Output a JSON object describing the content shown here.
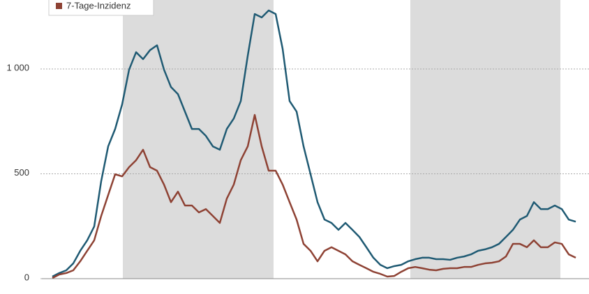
{
  "chart_data": {
    "type": "line",
    "ylim": [
      -73,
      1329
    ],
    "yticks": [
      0,
      500,
      {
        "value": 1000,
        "label": "1 000"
      }
    ],
    "grid": true,
    "series": [
      {
        "color": "#1f5a73",
        "values": [
          10,
          27,
          40,
          73,
          133,
          183,
          249,
          465,
          631,
          714,
          831,
          997,
          1080,
          1047,
          1090,
          1113,
          997,
          914,
          880,
          797,
          714,
          714,
          681,
          631,
          615,
          714,
          764,
          847,
          1063,
          1262,
          1246,
          1279,
          1262,
          1096,
          847,
          797,
          631,
          498,
          365,
          282,
          266,
          233,
          266,
          233,
          199,
          150,
          100,
          66,
          50,
          60,
          66,
          83,
          93,
          100,
          100,
          93,
          93,
          90,
          100,
          106,
          116,
          133,
          140,
          150,
          166,
          199,
          233,
          282,
          299,
          365,
          332,
          332,
          349,
          332,
          282,
          272
        ]
      },
      {
        "name": "7-Tage-Inzidenz",
        "color": "#8e4234",
        "values": [
          3,
          20,
          27,
          40,
          83,
          133,
          183,
          299,
          399,
          498,
          488,
          532,
          565,
          615,
          532,
          515,
          449,
          365,
          415,
          349,
          349,
          316,
          332,
          299,
          266,
          382,
          449,
          565,
          631,
          781,
          631,
          515,
          515,
          449,
          365,
          282,
          166,
          133,
          83,
          133,
          150,
          133,
          116,
          83,
          66,
          50,
          33,
          23,
          10,
          13,
          33,
          50,
          56,
          50,
          43,
          40,
          47,
          50,
          50,
          56,
          56,
          66,
          73,
          76,
          83,
          106,
          166,
          166,
          150,
          183,
          150,
          150,
          173,
          166,
          116,
          100
        ]
      }
    ]
  }
}
